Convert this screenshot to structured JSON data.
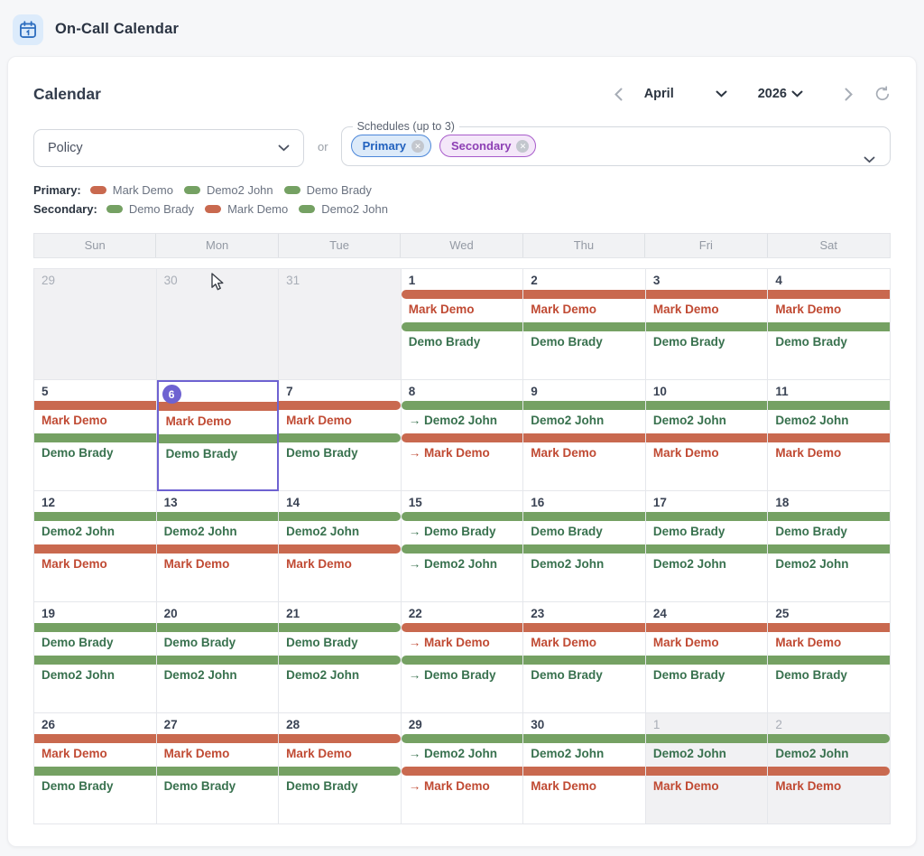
{
  "header": {
    "title": "On-Call Calendar",
    "icon": "calendar-icon"
  },
  "panel": {
    "title": "Calendar",
    "nav": {
      "month": "April",
      "year": "2026",
      "prev_icon": "chevron-left-icon",
      "next_icon": "chevron-right-icon",
      "refresh_icon": "refresh-icon"
    },
    "filters": {
      "policy_placeholder": "Policy",
      "or_label": "or",
      "schedules_label": "Schedules (up to 3)",
      "chips": [
        {
          "label": "Primary",
          "style": "blue"
        },
        {
          "label": "Secondary",
          "style": "purple"
        }
      ]
    },
    "legend": [
      {
        "label": "Primary:",
        "entries": [
          {
            "name": "Mark Demo",
            "color": "orange"
          },
          {
            "name": "Demo2 John",
            "color": "green"
          },
          {
            "name": "Demo Brady",
            "color": "green"
          }
        ]
      },
      {
        "label": "Secondary:",
        "entries": [
          {
            "name": "Demo Brady",
            "color": "green"
          },
          {
            "name": "Mark Demo",
            "color": "orange"
          },
          {
            "name": "Demo2 John",
            "color": "green"
          }
        ]
      }
    ],
    "weekdays": [
      "Sun",
      "Mon",
      "Tue",
      "Wed",
      "Thu",
      "Fri",
      "Sat"
    ],
    "weeks": [
      [
        {
          "day": "29",
          "other": true,
          "events": []
        },
        {
          "day": "30",
          "other": true,
          "events": [],
          "cursor": true
        },
        {
          "day": "31",
          "other": true,
          "events": []
        },
        {
          "day": "1",
          "events": [
            {
              "name": "Mark Demo",
              "color": "orange",
              "start": true
            },
            {
              "name": "Demo Brady",
              "color": "green",
              "start": true
            }
          ]
        },
        {
          "day": "2",
          "events": [
            {
              "name": "Mark Demo",
              "color": "orange"
            },
            {
              "name": "Demo Brady",
              "color": "green"
            }
          ]
        },
        {
          "day": "3",
          "events": [
            {
              "name": "Mark Demo",
              "color": "orange"
            },
            {
              "name": "Demo Brady",
              "color": "green"
            }
          ]
        },
        {
          "day": "4",
          "events": [
            {
              "name": "Mark Demo",
              "color": "orange"
            },
            {
              "name": "Demo Brady",
              "color": "green"
            }
          ]
        }
      ],
      [
        {
          "day": "5",
          "events": [
            {
              "name": "Mark Demo",
              "color": "orange"
            },
            {
              "name": "Demo Brady",
              "color": "green"
            }
          ]
        },
        {
          "day": "6",
          "today": true,
          "events": [
            {
              "name": "Mark Demo",
              "color": "orange"
            },
            {
              "name": "Demo Brady",
              "color": "green"
            }
          ]
        },
        {
          "day": "7",
          "events": [
            {
              "name": "Mark Demo",
              "color": "orange",
              "end": true
            },
            {
              "name": "Demo Brady",
              "color": "green",
              "end": true
            }
          ]
        },
        {
          "day": "8",
          "events": [
            {
              "name": "Demo2 John",
              "color": "green",
              "arrow": true,
              "start": true
            },
            {
              "name": "Mark Demo",
              "color": "orange",
              "arrow": true,
              "start": true
            }
          ]
        },
        {
          "day": "9",
          "events": [
            {
              "name": "Demo2 John",
              "color": "green"
            },
            {
              "name": "Mark Demo",
              "color": "orange"
            }
          ]
        },
        {
          "day": "10",
          "events": [
            {
              "name": "Demo2 John",
              "color": "green"
            },
            {
              "name": "Mark Demo",
              "color": "orange"
            }
          ]
        },
        {
          "day": "11",
          "events": [
            {
              "name": "Demo2 John",
              "color": "green"
            },
            {
              "name": "Mark Demo",
              "color": "orange"
            }
          ]
        }
      ],
      [
        {
          "day": "12",
          "events": [
            {
              "name": "Demo2 John",
              "color": "green"
            },
            {
              "name": "Mark Demo",
              "color": "orange"
            }
          ]
        },
        {
          "day": "13",
          "events": [
            {
              "name": "Demo2 John",
              "color": "green"
            },
            {
              "name": "Mark Demo",
              "color": "orange"
            }
          ]
        },
        {
          "day": "14",
          "events": [
            {
              "name": "Demo2 John",
              "color": "green",
              "end": true
            },
            {
              "name": "Mark Demo",
              "color": "orange",
              "end": true
            }
          ]
        },
        {
          "day": "15",
          "events": [
            {
              "name": "Demo Brady",
              "color": "green",
              "arrow": true,
              "start": true
            },
            {
              "name": "Demo2 John",
              "color": "green",
              "arrow": true,
              "start": true
            }
          ]
        },
        {
          "day": "16",
          "events": [
            {
              "name": "Demo Brady",
              "color": "green"
            },
            {
              "name": "Demo2 John",
              "color": "green"
            }
          ]
        },
        {
          "day": "17",
          "events": [
            {
              "name": "Demo Brady",
              "color": "green"
            },
            {
              "name": "Demo2 John",
              "color": "green"
            }
          ]
        },
        {
          "day": "18",
          "events": [
            {
              "name": "Demo Brady",
              "color": "green"
            },
            {
              "name": "Demo2 John",
              "color": "green"
            }
          ]
        }
      ],
      [
        {
          "day": "19",
          "events": [
            {
              "name": "Demo Brady",
              "color": "green"
            },
            {
              "name": "Demo2 John",
              "color": "green"
            }
          ]
        },
        {
          "day": "20",
          "events": [
            {
              "name": "Demo Brady",
              "color": "green"
            },
            {
              "name": "Demo2 John",
              "color": "green"
            }
          ]
        },
        {
          "day": "21",
          "events": [
            {
              "name": "Demo Brady",
              "color": "green",
              "end": true
            },
            {
              "name": "Demo2 John",
              "color": "green",
              "end": true
            }
          ]
        },
        {
          "day": "22",
          "events": [
            {
              "name": "Mark Demo",
              "color": "orange",
              "arrow": true,
              "start": true
            },
            {
              "name": "Demo Brady",
              "color": "green",
              "arrow": true,
              "start": true
            }
          ]
        },
        {
          "day": "23",
          "events": [
            {
              "name": "Mark Demo",
              "color": "orange"
            },
            {
              "name": "Demo Brady",
              "color": "green"
            }
          ]
        },
        {
          "day": "24",
          "events": [
            {
              "name": "Mark Demo",
              "color": "orange"
            },
            {
              "name": "Demo Brady",
              "color": "green"
            }
          ]
        },
        {
          "day": "25",
          "events": [
            {
              "name": "Mark Demo",
              "color": "orange"
            },
            {
              "name": "Demo Brady",
              "color": "green"
            }
          ]
        }
      ],
      [
        {
          "day": "26",
          "events": [
            {
              "name": "Mark Demo",
              "color": "orange"
            },
            {
              "name": "Demo Brady",
              "color": "green"
            }
          ]
        },
        {
          "day": "27",
          "events": [
            {
              "name": "Mark Demo",
              "color": "orange"
            },
            {
              "name": "Demo Brady",
              "color": "green"
            }
          ]
        },
        {
          "day": "28",
          "events": [
            {
              "name": "Mark Demo",
              "color": "orange",
              "end": true
            },
            {
              "name": "Demo Brady",
              "color": "green",
              "end": true
            }
          ]
        },
        {
          "day": "29",
          "events": [
            {
              "name": "Demo2 John",
              "color": "green",
              "arrow": true,
              "start": true
            },
            {
              "name": "Mark Demo",
              "color": "orange",
              "arrow": true,
              "start": true
            }
          ]
        },
        {
          "day": "30",
          "events": [
            {
              "name": "Demo2 John",
              "color": "green"
            },
            {
              "name": "Mark Demo",
              "color": "orange"
            }
          ]
        },
        {
          "day": "1",
          "other": true,
          "events": [
            {
              "name": "Demo2 John",
              "color": "green"
            },
            {
              "name": "Mark Demo",
              "color": "orange"
            }
          ]
        },
        {
          "day": "2",
          "other": true,
          "events": [
            {
              "name": "Demo2 John",
              "color": "green",
              "end": true
            },
            {
              "name": "Mark Demo",
              "color": "orange",
              "end": true
            }
          ]
        }
      ]
    ]
  },
  "colors": {
    "orange_bar": "#C9694F",
    "orange_text": "#C04A33",
    "green_bar": "#75A163",
    "green_text": "#38714E",
    "today_accent": "#6E62D1",
    "app_icon_blue": "#2F6FC0",
    "app_icon_bg": "#DCEBFB"
  },
  "arrow_prefix": "→ "
}
